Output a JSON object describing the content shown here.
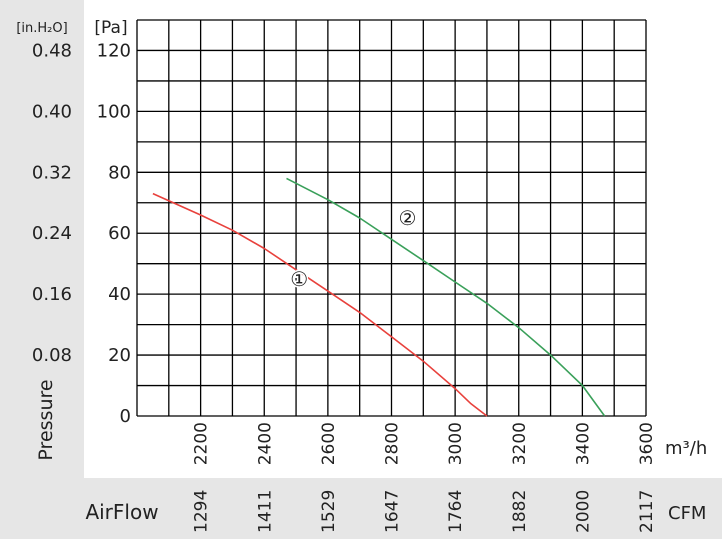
{
  "colors": {
    "panel": "#e6e6e6",
    "grid": "#000000",
    "curve_1": "#e8413c",
    "curve_2": "#3aa05a"
  },
  "labels": {
    "unit_inh2o": "[in.H₂O]",
    "unit_pa": "[Pa]",
    "pressure": "Pressure",
    "unit_m3h": "m³/h",
    "airflow": "AirFlow",
    "unit_cfm": "CFM"
  },
  "chart_data": {
    "type": "line",
    "x_unit": "m³/h",
    "y_unit": "Pa",
    "xlim": [
      2000,
      3600
    ],
    "ylim": [
      0,
      130
    ],
    "grid": true,
    "x_ticks": [
      "2200",
      "2400",
      "2600",
      "2800",
      "3000",
      "3200",
      "3400",
      "3600"
    ],
    "x_tick_values": [
      2200,
      2400,
      2600,
      2800,
      3000,
      3200,
      3400,
      3600
    ],
    "cfm_ticks": [
      "1294",
      "1411",
      "1529",
      "1647",
      "1764",
      "1882",
      "2000",
      "2117"
    ],
    "y_ticks_pa": [
      "0",
      "20",
      "40",
      "60",
      "80",
      "100",
      "120"
    ],
    "y_tick_values": [
      0,
      20,
      40,
      60,
      80,
      100,
      120
    ],
    "y_ticks_inh2o": [
      "0.08",
      "0.16",
      "0.24",
      "0.32",
      "0.40",
      "0.48"
    ],
    "y_ticks_inh2o_values": [
      20,
      40,
      60,
      80,
      100,
      120
    ],
    "series": [
      {
        "name": "1",
        "color": "#e8413c",
        "x": [
          2050,
          2200,
          2300,
          2400,
          2500,
          2600,
          2700,
          2800,
          2900,
          3000,
          3050,
          3100
        ],
        "y": [
          73,
          66,
          61,
          55,
          48,
          41,
          34,
          26,
          18,
          9,
          4,
          0
        ]
      },
      {
        "name": "2",
        "color": "#3aa05a",
        "x": [
          2470,
          2600,
          2700,
          2800,
          2900,
          3000,
          3100,
          3200,
          3300,
          3400,
          3470
        ],
        "y": [
          78,
          71,
          65,
          58,
          51,
          44,
          37,
          29,
          20,
          10,
          0
        ]
      }
    ],
    "annotations": [
      {
        "text": "①",
        "x": 2510,
        "y": 45
      },
      {
        "text": "②",
        "x": 2850,
        "y": 65
      }
    ]
  }
}
